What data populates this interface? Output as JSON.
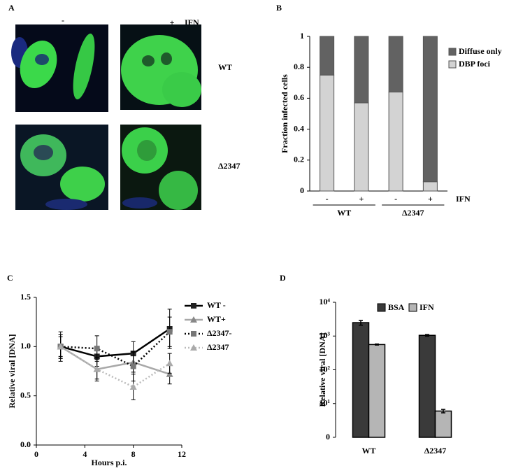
{
  "image_panel": {
    "label": "A",
    "column_labels": [
      "-",
      "+"
    ],
    "treatment": "IFN",
    "row_labels": [
      "WT",
      "Δ2347"
    ]
  },
  "chart_data": [
    {
      "type": "stacked_bar",
      "label": "B",
      "ylabel": "Fraction infected cells",
      "categories": [
        "-",
        "+",
        "-",
        "+"
      ],
      "group_labels": [
        "WT",
        "Δ2347"
      ],
      "treatment": "IFN",
      "series": [
        {
          "name": "DBP foci",
          "color": "#d3d3d3",
          "values": [
            0.75,
            0.57,
            0.64,
            0.06
          ]
        },
        {
          "name": "Diffuse only",
          "color": "#626262",
          "values": [
            0.25,
            0.43,
            0.36,
            0.94
          ]
        }
      ],
      "ylim": [
        0,
        1
      ],
      "yticks": [
        0,
        0.2,
        0.4,
        0.6,
        0.8,
        1
      ]
    },
    {
      "type": "line",
      "label": "C",
      "xlabel": "Hours p.i.",
      "ylabel": "Relative viral [DNA]",
      "x": [
        2,
        5,
        8,
        11
      ],
      "series": [
        {
          "name": "WT -",
          "color": "#000000",
          "marker_color": "#222222",
          "marker": "square",
          "dash": "solid",
          "values": [
            1.0,
            0.9,
            0.93,
            1.18
          ],
          "errors": [
            0.12,
            0.1,
            0.12,
            0.2
          ]
        },
        {
          "name": "WT+",
          "color": "#a8a8a8",
          "marker_color": "#888888",
          "marker": "triangle",
          "dash": "solid",
          "values": [
            1.0,
            0.77,
            0.84,
            0.72
          ],
          "errors": [
            0.1,
            0.1,
            0.1,
            0.1
          ]
        },
        {
          "name": "Δ2347-",
          "color": "#000000",
          "marker_color": "#777777",
          "marker": "square",
          "dash": "dotted",
          "values": [
            1.0,
            0.98,
            0.8,
            1.15
          ],
          "errors": [
            0.15,
            0.13,
            0.15,
            0.15
          ]
        },
        {
          "name": "Δ2347",
          "color": "#bbbbbb",
          "marker_color": "#aaaaaa",
          "marker": "triangle",
          "dash": "dotted",
          "values": [
            1.0,
            0.77,
            0.59,
            0.83
          ],
          "errors": [
            0.12,
            0.12,
            0.13,
            0.1
          ]
        }
      ],
      "xlim": [
        0,
        12
      ],
      "xticks": [
        0,
        4,
        8,
        12
      ],
      "ylim": [
        0,
        1.5
      ],
      "yticks": [
        {
          "value": 0,
          "label": "0.0"
        },
        {
          "value": 0.5,
          "label": "0.5"
        },
        {
          "value": 1,
          "label": "1.0"
        },
        {
          "value": 1.5,
          "label": "1.5"
        }
      ]
    },
    {
      "type": "bar",
      "label": "D",
      "ylabel": "Relative viral [DNA]",
      "log_scale": true,
      "categories": [
        "WT",
        "Δ2347"
      ],
      "series": [
        {
          "name": "BSA",
          "color": "#3a3a3a",
          "values": [
            2500,
            1050
          ],
          "errors": [
            400,
            60
          ]
        },
        {
          "name": "IFN",
          "color": "#b5b5b5",
          "values": [
            560,
            6
          ],
          "errors": [
            20,
            0.7
          ]
        }
      ],
      "ylim": [
        1,
        10000
      ],
      "yticks": [
        {
          "value": 1,
          "label": "0"
        },
        {
          "value": 10,
          "label": "10¹"
        },
        {
          "value": 100,
          "label": "10²"
        },
        {
          "value": 1000,
          "label": "10³"
        },
        {
          "value": 10000,
          "label": "10⁴"
        }
      ]
    }
  ]
}
